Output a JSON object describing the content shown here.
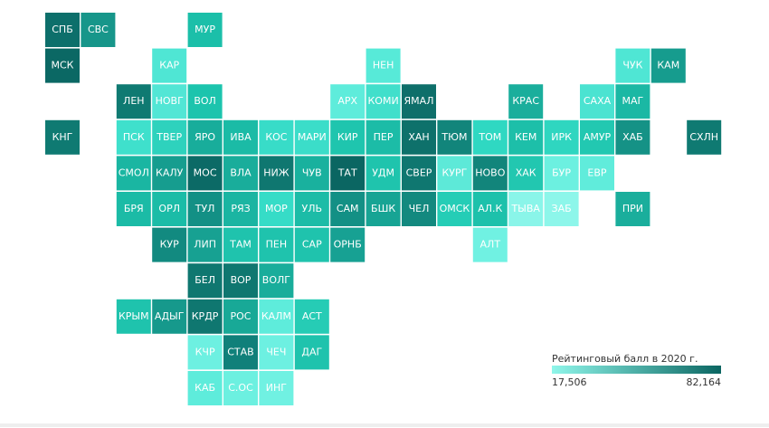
{
  "tiles": [
    {
      "label": "СПБ",
      "color": "#0d6f6b"
    },
    {
      "label": "СВС",
      "color": "#17968a"
    },
    {
      "label": "МУР",
      "color": "#1bbfa9"
    },
    {
      "label": "МСК",
      "color": "#0b6864"
    },
    {
      "label": "КАР",
      "color": "#4fe6d4"
    },
    {
      "label": "НЕН",
      "color": "#57ead8"
    },
    {
      "label": "ЧУК",
      "color": "#4fe6d4"
    },
    {
      "label": "КАМ",
      "color": "#169c8e"
    },
    {
      "label": "ЛЕН",
      "color": "#0f7a72"
    },
    {
      "label": "НОВГ",
      "color": "#52e6d5"
    },
    {
      "label": "ВОЛ",
      "color": "#1cc4ad"
    },
    {
      "label": "АРХ",
      "color": "#5eecdb"
    },
    {
      "label": "КОМИ",
      "color": "#41dfcb"
    },
    {
      "label": "ЯМАЛ",
      "color": "#0e6f6a"
    },
    {
      "label": "КРАС",
      "color": "#1aae9c"
    },
    {
      "label": "САХА",
      "color": "#4be3d1"
    },
    {
      "label": "МАГ",
      "color": "#1bb8a4"
    },
    {
      "label": "КНГ",
      "color": "#0f7a72"
    },
    {
      "label": "ПСК",
      "color": "#3fe0cc"
    },
    {
      "label": "ТВЕР",
      "color": "#2ed2bd"
    },
    {
      "label": "ЯРО",
      "color": "#18ad9b"
    },
    {
      "label": "ИВА",
      "color": "#1bbba6"
    },
    {
      "label": "КОС",
      "color": "#38dcc8"
    },
    {
      "label": "МАРИ",
      "color": "#3bddc9"
    },
    {
      "label": "КИР",
      "color": "#1fc5ae"
    },
    {
      "label": "ПЕР",
      "color": "#1cbca7"
    },
    {
      "label": "ХАН",
      "color": "#0e716b"
    },
    {
      "label": "ТЮМ",
      "color": "#12857b"
    },
    {
      "label": "ТОМ",
      "color": "#2fd8c2"
    },
    {
      "label": "КЕМ",
      "color": "#1dbfa9"
    },
    {
      "label": "ИРК",
      "color": "#2fd6c0"
    },
    {
      "label": "АМУР",
      "color": "#22c8b1"
    },
    {
      "label": "ХАБ",
      "color": "#159286"
    },
    {
      "label": "СХЛН",
      "color": "#0f7a72"
    },
    {
      "label": "СМОЛ",
      "color": "#1ab6a2"
    },
    {
      "label": "КАЛУ",
      "color": "#169d8f"
    },
    {
      "label": "МОС",
      "color": "#0c6a66"
    },
    {
      "label": "ВЛА",
      "color": "#19ad9b"
    },
    {
      "label": "НИЖ",
      "color": "#0f7770"
    },
    {
      "label": "ЧУВ",
      "color": "#19b19e"
    },
    {
      "label": "ТАТ",
      "color": "#0b6662"
    },
    {
      "label": "УДМ",
      "color": "#1fc4ad"
    },
    {
      "label": "СВЕР",
      "color": "#0f7770"
    },
    {
      "label": "КУРГ",
      "color": "#5de9d8"
    },
    {
      "label": "НОВО",
      "color": "#12857b"
    },
    {
      "label": "ХАК",
      "color": "#22c7b0"
    },
    {
      "label": "БУР",
      "color": "#6cf0e0"
    },
    {
      "label": "ЕВР",
      "color": "#60ecdb"
    },
    {
      "label": "БРЯ",
      "color": "#1bbba6"
    },
    {
      "label": "ОРЛ",
      "color": "#1bbca7"
    },
    {
      "label": "ТУЛ",
      "color": "#139085"
    },
    {
      "label": "РЯЗ",
      "color": "#1bb5a2"
    },
    {
      "label": "МОР",
      "color": "#36dcc7"
    },
    {
      "label": "УЛЬ",
      "color": "#1cbca7"
    },
    {
      "label": "САМ",
      "color": "#139085"
    },
    {
      "label": "БШК",
      "color": "#17a494"
    },
    {
      "label": "ЧЕЛ",
      "color": "#13897f"
    },
    {
      "label": "ОМСК",
      "color": "#25cdb6"
    },
    {
      "label": "АЛ.К",
      "color": "#1dc1ab"
    },
    {
      "label": "ТЫВА",
      "color": "#8af5e9"
    },
    {
      "label": "ЗАБ",
      "color": "#8df6ea"
    },
    {
      "label": "ПРИ",
      "color": "#1aae9c"
    },
    {
      "label": "КУР",
      "color": "#128a80"
    },
    {
      "label": "ЛИП",
      "color": "#17a192"
    },
    {
      "label": "ТАМ",
      "color": "#1fc3ad"
    },
    {
      "label": "ПЕН",
      "color": "#1fc3ad"
    },
    {
      "label": "САР",
      "color": "#1fc3ad"
    },
    {
      "label": "ОРНБ",
      "color": "#17a193"
    },
    {
      "label": "АЛТ",
      "color": "#70f1e2"
    },
    {
      "label": "БЕЛ",
      "color": "#0f7770"
    },
    {
      "label": "ВОР",
      "color": "#0f7770"
    },
    {
      "label": "ВОЛГ",
      "color": "#19ad9b"
    },
    {
      "label": "КРЫМ",
      "color": "#1fc3ad"
    },
    {
      "label": "АДЫГ",
      "color": "#16998c"
    },
    {
      "label": "КРДР",
      "color": "#0f7770"
    },
    {
      "label": "РОС",
      "color": "#18a997"
    },
    {
      "label": "КАЛМ",
      "color": "#5eecdb"
    },
    {
      "label": "АСТ",
      "color": "#26ccb5"
    },
    {
      "label": "КЧР",
      "color": "#6df0e1"
    },
    {
      "label": "СТАВ",
      "color": "#10807a"
    },
    {
      "label": "ЧЕЧ",
      "color": "#6df0e1"
    },
    {
      "label": "ДАГ",
      "color": "#1fc3ad"
    },
    {
      "label": "КАБ",
      "color": "#5eecdb"
    },
    {
      "label": "С.ОС",
      "color": "#6cf0e0"
    },
    {
      "label": "ИНГ",
      "color": "#70f1e2"
    }
  ],
  "legend": {
    "title": "Рейтинговый балл в 2020 г.",
    "min": {
      "value": 17506,
      "label": "17,506"
    },
    "max": {
      "value": 82164,
      "label": "82,164"
    },
    "colors": [
      "#8ff6ea",
      "#0b6662"
    ]
  }
}
